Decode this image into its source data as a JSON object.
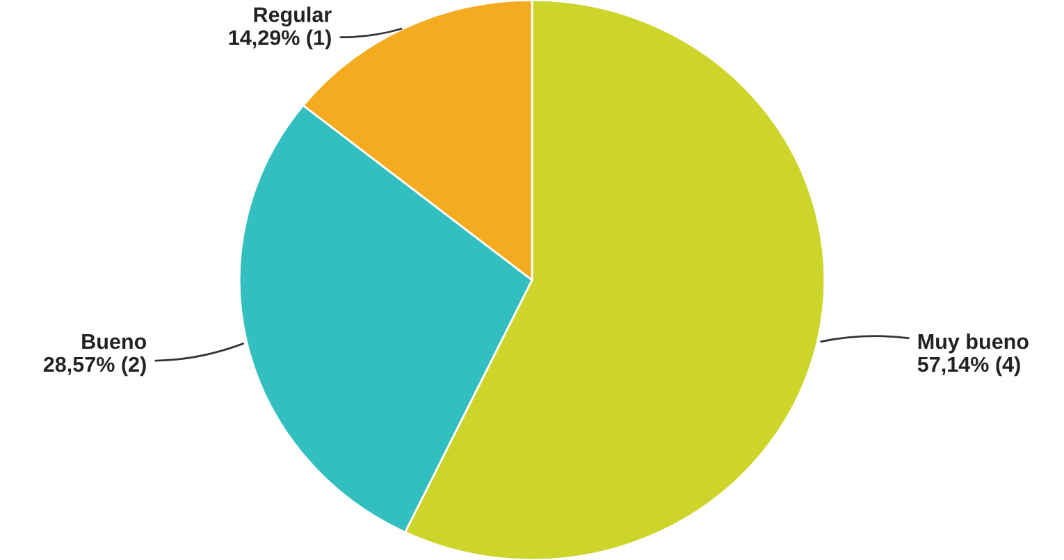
{
  "chart_data": {
    "type": "pie",
    "categories": [
      "Muy bueno",
      "Bueno",
      "Regular"
    ],
    "values": [
      4,
      2,
      1
    ],
    "value_labels": [
      "57,14% (4)",
      "28,57% (2)",
      "14,29% (1)"
    ],
    "colors": [
      "#cdd52a",
      "#33bfbf",
      "#f5ab1f"
    ],
    "legend": false
  }
}
